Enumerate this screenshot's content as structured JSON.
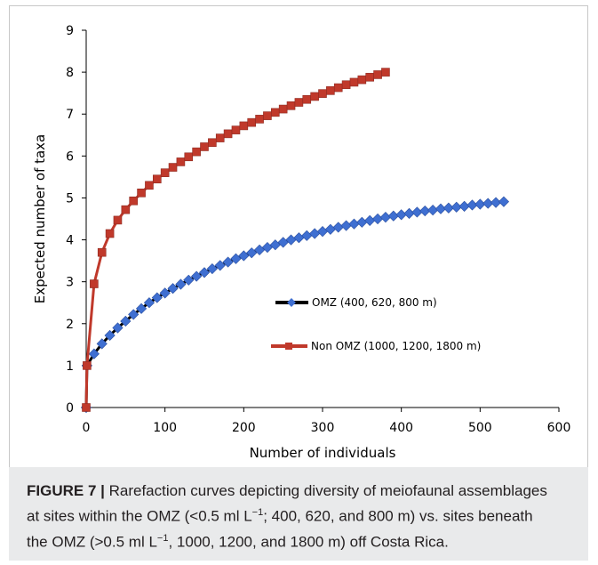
{
  "chart_data": {
    "type": "line",
    "xlabel": "Number of individuals",
    "ylabel": "Expected number of taxa",
    "xlim": [
      0,
      600
    ],
    "ylim": [
      0,
      9
    ],
    "xticks": [
      "0",
      "100",
      "200",
      "300",
      "400",
      "500",
      "600"
    ],
    "yticks": [
      "0",
      "1",
      "2",
      "3",
      "4",
      "5",
      "6",
      "7",
      "8",
      "9"
    ],
    "grid": false,
    "legend_position": "center-right",
    "series": [
      {
        "name": "OMZ (400, 620, 800 m)",
        "marker": "diamond",
        "color": "#3f6fd1",
        "line_color": "#000000",
        "x": [
          0,
          1,
          10,
          20,
          30,
          40,
          50,
          60,
          70,
          80,
          90,
          100,
          110,
          120,
          130,
          140,
          150,
          160,
          170,
          180,
          190,
          200,
          210,
          220,
          230,
          240,
          250,
          260,
          270,
          280,
          290,
          300,
          310,
          320,
          330,
          340,
          350,
          360,
          370,
          380,
          390,
          400,
          410,
          420,
          430,
          440,
          450,
          460,
          470,
          480,
          490,
          500,
          510,
          520,
          530
        ],
        "y": [
          0,
          1.0,
          1.28,
          1.52,
          1.72,
          1.9,
          2.06,
          2.22,
          2.36,
          2.5,
          2.62,
          2.73,
          2.84,
          2.94,
          3.04,
          3.13,
          3.22,
          3.31,
          3.39,
          3.47,
          3.55,
          3.62,
          3.69,
          3.76,
          3.82,
          3.88,
          3.94,
          4.0,
          4.05,
          4.1,
          4.15,
          4.2,
          4.25,
          4.3,
          4.34,
          4.38,
          4.42,
          4.46,
          4.5,
          4.54,
          4.57,
          4.6,
          4.63,
          4.66,
          4.69,
          4.71,
          4.74,
          4.76,
          4.78,
          4.8,
          4.83,
          4.85,
          4.87,
          4.89,
          4.91
        ]
      },
      {
        "name": "Non OMZ (1000, 1200, 1800 m)",
        "marker": "square",
        "color": "#c0392b",
        "line_color": "#c0392b",
        "x": [
          0,
          1,
          10,
          20,
          30,
          40,
          50,
          60,
          70,
          80,
          90,
          100,
          110,
          120,
          130,
          140,
          150,
          160,
          170,
          180,
          190,
          200,
          210,
          220,
          230,
          240,
          250,
          260,
          270,
          280,
          290,
          300,
          310,
          320,
          330,
          340,
          350,
          360,
          370,
          380
        ],
        "y": [
          0,
          1.0,
          2.95,
          3.7,
          4.15,
          4.47,
          4.72,
          4.93,
          5.12,
          5.3,
          5.45,
          5.6,
          5.73,
          5.86,
          5.98,
          6.1,
          6.22,
          6.32,
          6.43,
          6.53,
          6.62,
          6.72,
          6.8,
          6.88,
          6.96,
          7.04,
          7.12,
          7.2,
          7.28,
          7.35,
          7.42,
          7.49,
          7.56,
          7.63,
          7.7,
          7.76,
          7.82,
          7.88,
          7.94,
          8.0
        ]
      }
    ]
  },
  "caption": {
    "label": "FIGURE 7 |",
    "line1": " Rarefaction curves depicting diversity of meiofaunal assemblages",
    "line2": "at sites within the OMZ (<0.5 ml L",
    "sup1": "−1",
    "line2b": "; 400, 620, and 800 m) vs. sites beneath",
    "line3": "the OMZ (>0.5 ml L",
    "sup2": "−1",
    "line3b": ", 1000, 1200, and 1800 m) off Costa Rica."
  }
}
